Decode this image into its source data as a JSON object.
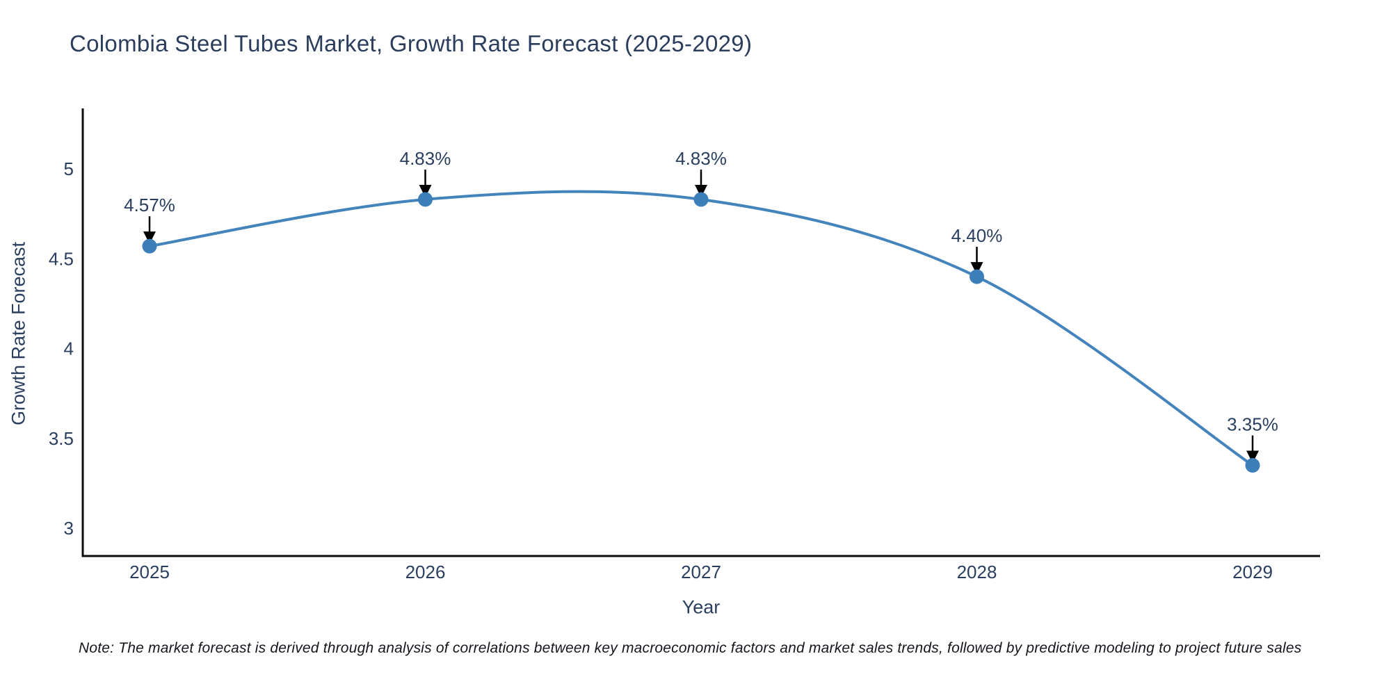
{
  "title": "Colombia Steel Tubes Market, Growth Rate Forecast (2025-2029)",
  "note": "Note: The market forecast is derived through analysis of correlations between key macroeconomic factors and market sales trends, followed by predictive modeling to project future sales",
  "chart_data": {
    "type": "line",
    "line_shape": "spline",
    "title": "Colombia Steel Tubes Market, Growth Rate Forecast (2025-2029)",
    "xlabel": "Year",
    "ylabel": "Growth Rate Forecast",
    "x": [
      2025,
      2026,
      2027,
      2028,
      2029
    ],
    "y": [
      4.57,
      4.83,
      4.83,
      4.4,
      3.35
    ],
    "point_labels": [
      "4.57%",
      "4.83%",
      "4.83%",
      "4.40%",
      "3.35%"
    ],
    "xticks": [
      "2025",
      "2026",
      "2027",
      "2028",
      "2029"
    ],
    "yticks": [
      5,
      4.5,
      4,
      3.5,
      3
    ],
    "ylim": [
      2.84,
      5.32
    ],
    "grid": false,
    "legend": "none",
    "annotation_style": "black down-arrow from label to marker",
    "colors": {
      "line": "#4484BC",
      "marker": "#3C7EB8",
      "arrow": "#000000",
      "axis": "#0d0d0d",
      "tick_text": "#2a3f5f",
      "title_text": "#2b3d5c"
    }
  }
}
